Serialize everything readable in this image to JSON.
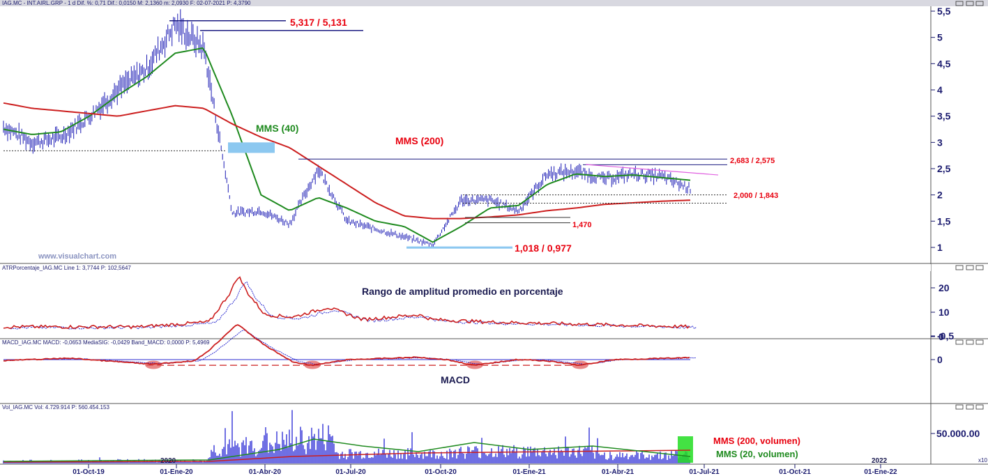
{
  "colors": {
    "price_bar": "#1a1ab4",
    "ma_short": "#1e8a1e",
    "ma_long": "#cc1e1e",
    "annotation_red": "#e8000e",
    "axis": "#1a1a6e",
    "highlight_blue": "#8cc8f0",
    "volume_bar": "#1010d0",
    "highlight_green": "#22dd22",
    "trend_magenta": "#e060e0"
  },
  "price_panel": {
    "header": {
      "symbol": "IAG.MC",
      "name": "INT.AIRL.GRP",
      "period": "1 d",
      "dif_pct_label": "Dif. %:",
      "dif_pct": "0,71",
      "dif_label": "Dif.:",
      "dif": "0,0150",
      "max_label": "M:",
      "max": "2,1360",
      "min_label": "m:",
      "min": "2,0930",
      "date_label": "F:",
      "date": "02-07-2021",
      "p_label": "P:",
      "p": "4,3790"
    },
    "watermark": "www.visualchart.com",
    "y_ticks": [
      "5,5",
      "5",
      "4,5",
      "4",
      "3,5",
      "3",
      "2,5",
      "2",
      "1,5",
      "1"
    ],
    "annotations": {
      "high": "5,317 / 5,131",
      "ma40": "MMS (40)",
      "ma200": "MMS (200)",
      "resistance": "2,683 / 2,575",
      "support": "2,000 / 1,843",
      "mid": "1,470",
      "low": "1,018 / 0,977"
    }
  },
  "atr_panel": {
    "header": {
      "name": "ATRPorcentaje_IAG.MC",
      "line_label": "Line 1:",
      "line": "3,7744",
      "p_label": "P:",
      "p": "102,5647"
    },
    "title": "Rango de amplitud promedio en porcentaje",
    "y_ticks": [
      "20",
      "10",
      "0"
    ]
  },
  "macd_panel": {
    "header": {
      "name": "MACD_IAG.MC",
      "macd_label": "MACD:",
      "macd": "-0,0653",
      "signal_label": "MediaSIG:",
      "signal": "-0,0429",
      "band_label": "Band_MACD:",
      "band": "0,0000",
      "p_label": "P:",
      "p": "5,4969"
    },
    "title": "MACD",
    "y_ticks": [
      "0",
      "-0,5"
    ]
  },
  "volume_panel": {
    "header": {
      "name": "Vol_IAG.MC",
      "vol_label": "Vol:",
      "vol": "4.729.914",
      "p_label": "P:",
      "p": "560.454.153"
    },
    "legend": {
      "ma200": "MMS (200, volumen)",
      "ma20": "MMS (20, volumen)"
    },
    "y_ticks": [
      "50.000.00"
    ],
    "year_markers": [
      "2020",
      "2022"
    ],
    "scale_label": "x10"
  },
  "x_ticks": [
    "01-Oct-19",
    "01-Ene-20",
    "01-Abr-20",
    "01-Jul-20",
    "01-Oct-20",
    "01-Ene-21",
    "01-Abr-21",
    "01-Jul-21",
    "01-Oct-21",
    "01-Ene-22"
  ],
  "chart_data": {
    "type": "line",
    "x_unit": "month",
    "x": [
      "2019-07",
      "2019-08",
      "2019-09",
      "2019-10",
      "2019-11",
      "2019-12",
      "2020-01",
      "2020-02",
      "2020-03",
      "2020-04",
      "2020-05",
      "2020-06",
      "2020-07",
      "2020-08",
      "2020-09",
      "2020-10",
      "2020-11",
      "2020-12",
      "2021-01",
      "2021-02",
      "2021-03",
      "2021-04",
      "2021-05",
      "2021-06",
      "2021-07"
    ],
    "ylim": [
      0.7,
      5.5
    ],
    "series": [
      {
        "name": "",
        "values": [
          3.3,
          3.0,
          3.1,
          3.5,
          4.0,
          4.4,
          5.25,
          4.8,
          1.65,
          1.7,
          1.45,
          2.5,
          1.5,
          1.35,
          1.2,
          1.05,
          1.9,
          1.9,
          1.7,
          2.4,
          2.45,
          2.3,
          2.4,
          2.35,
          2.12
        ]
      },
      {
        "name": "MMS (40)",
        "values": [
          3.25,
          3.15,
          3.2,
          3.5,
          3.9,
          4.25,
          4.7,
          4.8,
          3.5,
          2.0,
          1.7,
          1.95,
          1.75,
          1.5,
          1.4,
          1.1,
          1.4,
          1.75,
          1.8,
          2.2,
          2.4,
          2.35,
          2.38,
          2.33,
          2.28
        ]
      },
      {
        "name": "MMS (200)",
        "values": [
          3.75,
          3.65,
          3.6,
          3.55,
          3.5,
          3.6,
          3.7,
          3.65,
          3.35,
          3.1,
          2.9,
          2.55,
          2.2,
          1.85,
          1.6,
          1.55,
          1.55,
          1.58,
          1.62,
          1.7,
          1.75,
          1.82,
          1.85,
          1.88,
          1.9
        ]
      }
    ],
    "levels": [
      5.317,
      5.131,
      2.683,
      2.575,
      2.0,
      1.843,
      1.47,
      1.018,
      0.977
    ]
  }
}
